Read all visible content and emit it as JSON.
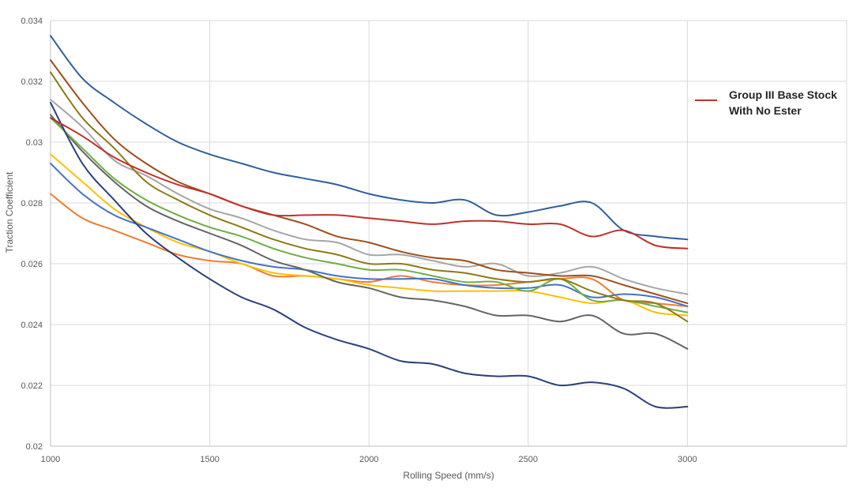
{
  "chart_data": {
    "type": "line",
    "xlabel": "Rolling Speed (mm/s)",
    "ylabel": "Traction Coefficient",
    "xlim": [
      1000,
      3500
    ],
    "ylim": [
      0.02,
      0.034
    ],
    "x_ticks": [
      "1000",
      "1500",
      "2000",
      "2500",
      "3000"
    ],
    "y_ticks": [
      "0.02",
      "0.022",
      "0.024",
      "0.026",
      "0.028",
      "0.03",
      "0.032",
      "0.034"
    ],
    "grid": true,
    "legend": {
      "position": "right",
      "entries": [
        {
          "lines": [
            "Group III Base Stock",
            "With No Ester"
          ],
          "color": "#c0312b"
        }
      ]
    },
    "x": [
      1000,
      1100,
      1200,
      1300,
      1400,
      1500,
      1600,
      1700,
      1800,
      1900,
      2000,
      2100,
      2200,
      2300,
      2400,
      2500,
      2600,
      2700,
      2800,
      2900,
      3000
    ],
    "series": [
      {
        "name": "Group III Base Stock With No Ester",
        "color": "#c0312b",
        "values": [
          0.0308,
          0.0302,
          0.0295,
          0.029,
          0.0286,
          0.0283,
          0.0279,
          0.0276,
          0.0276,
          0.0276,
          0.0275,
          0.0274,
          0.0273,
          0.0274,
          0.0274,
          0.0273,
          0.0273,
          0.0269,
          0.0271,
          0.0266,
          0.0265
        ]
      },
      {
        "color": "#2e5f99",
        "values": [
          0.0335,
          0.0321,
          0.0313,
          0.0306,
          0.03,
          0.0296,
          0.0293,
          0.029,
          0.0288,
          0.0286,
          0.0283,
          0.0281,
          0.028,
          0.0281,
          0.0276,
          0.0277,
          0.0279,
          0.028,
          0.0271,
          0.0269,
          0.0268
        ]
      },
      {
        "color": "#2b3f7c",
        "values": [
          0.0313,
          0.0293,
          0.0281,
          0.027,
          0.0262,
          0.0255,
          0.0249,
          0.0245,
          0.0239,
          0.0235,
          0.0232,
          0.0228,
          0.0227,
          0.0224,
          0.0223,
          0.0223,
          0.022,
          0.0221,
          0.0219,
          0.0213,
          0.0213
        ]
      },
      {
        "color": "#9c4f1a",
        "values": [
          0.0327,
          0.0313,
          0.0301,
          0.0293,
          0.0287,
          0.0283,
          0.0279,
          0.0276,
          0.0273,
          0.0269,
          0.0267,
          0.0264,
          0.0262,
          0.0261,
          0.0258,
          0.0257,
          0.0256,
          0.0256,
          0.0253,
          0.025,
          0.0247
        ]
      },
      {
        "color": "#8c7a16",
        "values": [
          0.0323,
          0.0308,
          0.0298,
          0.0287,
          0.0281,
          0.0276,
          0.0272,
          0.0268,
          0.0265,
          0.0263,
          0.026,
          0.026,
          0.0258,
          0.0257,
          0.0255,
          0.0254,
          0.0255,
          0.0251,
          0.0248,
          0.0247,
          0.0241
        ]
      },
      {
        "color": "#a5a5a5",
        "values": [
          0.0314,
          0.0305,
          0.0294,
          0.0289,
          0.0283,
          0.0278,
          0.0275,
          0.0271,
          0.0268,
          0.0267,
          0.0263,
          0.0263,
          0.0261,
          0.0259,
          0.026,
          0.0256,
          0.0257,
          0.0259,
          0.0255,
          0.0252,
          0.025
        ]
      },
      {
        "color": "#70ad47",
        "values": [
          0.0308,
          0.0298,
          0.0288,
          0.0281,
          0.0276,
          0.0272,
          0.0269,
          0.0265,
          0.0262,
          0.026,
          0.0258,
          0.0258,
          0.0256,
          0.0254,
          0.0254,
          0.0251,
          0.0255,
          0.0248,
          0.0248,
          0.0246,
          0.0244
        ]
      },
      {
        "color": "#646464",
        "values": [
          0.0309,
          0.0297,
          0.0287,
          0.0279,
          0.0274,
          0.027,
          0.0266,
          0.0261,
          0.0258,
          0.0254,
          0.0252,
          0.0249,
          0.0248,
          0.0246,
          0.0243,
          0.0243,
          0.0241,
          0.0243,
          0.0237,
          0.0237,
          0.0232
        ]
      },
      {
        "color": "#4472c4",
        "values": [
          0.0293,
          0.0283,
          0.0276,
          0.0272,
          0.0268,
          0.0264,
          0.0261,
          0.0259,
          0.0258,
          0.0256,
          0.0255,
          0.0255,
          0.0255,
          0.0253,
          0.0252,
          0.0252,
          0.0253,
          0.0249,
          0.025,
          0.0249,
          0.0246
        ]
      },
      {
        "color": "#ffc000",
        "values": [
          0.0296,
          0.0287,
          0.0278,
          0.0272,
          0.0267,
          0.0264,
          0.026,
          0.0257,
          0.0256,
          0.0255,
          0.0253,
          0.0252,
          0.0251,
          0.0251,
          0.0251,
          0.0251,
          0.0249,
          0.0247,
          0.0248,
          0.0244,
          0.0243
        ]
      },
      {
        "color": "#ed7d31",
        "values": [
          0.0283,
          0.0275,
          0.0271,
          0.0267,
          0.0263,
          0.0261,
          0.026,
          0.0256,
          0.0256,
          0.0255,
          0.0254,
          0.0256,
          0.0254,
          0.0253,
          0.0253,
          0.0254,
          0.0255,
          0.0255,
          0.0248,
          0.0247,
          0.0246
        ]
      }
    ]
  }
}
